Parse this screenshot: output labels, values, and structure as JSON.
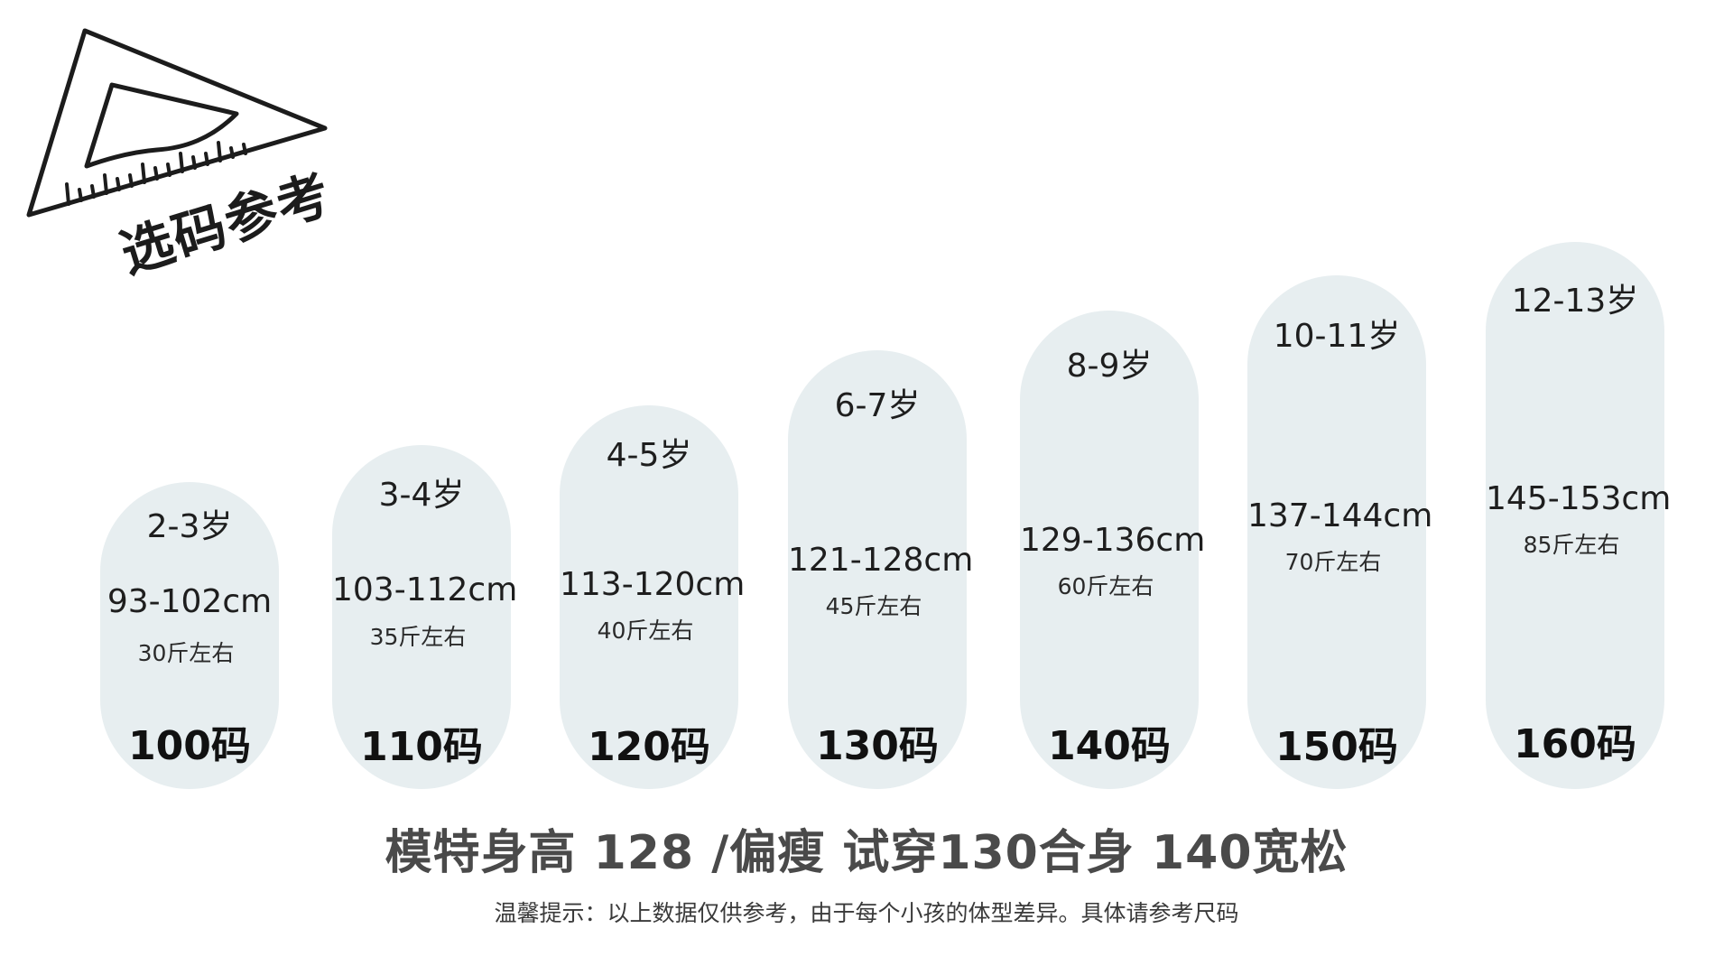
{
  "logo": {
    "icon": "ruler-triangle-icon",
    "title": "选码参考"
  },
  "sizes": [
    {
      "age": "2-3岁",
      "height": "93-102cm",
      "weight": "30斤左右",
      "size": "100码"
    },
    {
      "age": "3-4岁",
      "height": "103-112cm",
      "weight": "35斤左右",
      "size": "110码"
    },
    {
      "age": "4-5岁",
      "height": "113-120cm",
      "weight": "40斤左右",
      "size": "120码"
    },
    {
      "age": "6-7岁",
      "height": "121-128cm",
      "weight": "45斤左右",
      "size": "130码"
    },
    {
      "age": "8-9岁",
      "height": "129-136cm",
      "weight": "60斤左右",
      "size": "140码"
    },
    {
      "age": "10-11岁",
      "height": "137-144cm",
      "weight": "70斤左右",
      "size": "150码"
    },
    {
      "age": "12-13岁",
      "height": "145-153cm",
      "weight": "85斤左右",
      "size": "160码"
    }
  ],
  "model_note": "模特身高 128 /偏瘦 试穿130合身 140宽松",
  "tip": "温馨提示：以上数据仅供参考，由于每个小孩的体型差异。具体请参考尺码",
  "colors": {
    "card_bg": "#e7eef0",
    "text": "#1e1e1e",
    "note": "#4a4a4a"
  }
}
